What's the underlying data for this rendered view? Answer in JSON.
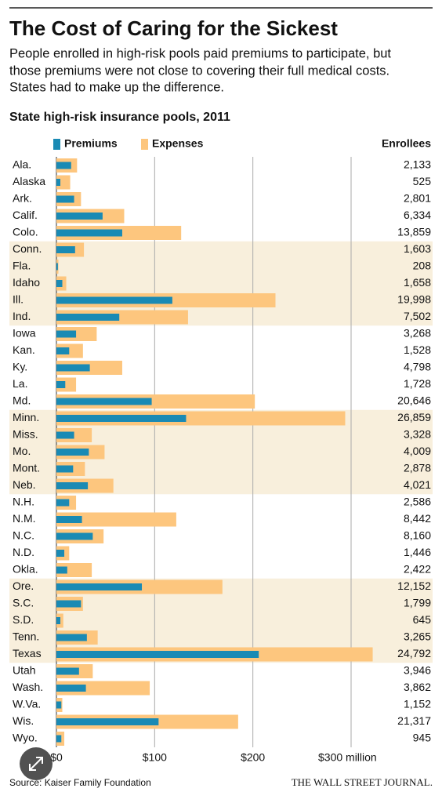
{
  "chart_data": {
    "type": "bar",
    "orientation": "horizontal",
    "title": "The Cost of Caring for the Sickest",
    "subtitle_lines": [
      "People enrolled in high-risk pools paid premiums to participate, but",
      "those premiums were not close to covering their full medical costs.",
      "States had to make up the difference."
    ],
    "chart_title": "State high-risk insurance pools, 2011",
    "categories": [
      "Ala.",
      "Alaska",
      "Ark.",
      "Calif.",
      "Colo.",
      "Conn.",
      "Fla.",
      "Idaho",
      "Ill.",
      "Ind.",
      "Iowa",
      "Kan.",
      "Ky.",
      "La.",
      "Md.",
      "Minn.",
      "Miss.",
      "Mo.",
      "Mont.",
      "Neb.",
      "N.H.",
      "N.M.",
      "N.C.",
      "N.D.",
      "Okla.",
      "Ore.",
      "S.C.",
      "S.D.",
      "Tenn.",
      "Texas",
      "Utah",
      "Wash.",
      "W.Va.",
      "Wis.",
      "Wyo."
    ],
    "series": [
      {
        "name": "Premiums",
        "color": "#1a8ab4",
        "values": [
          15,
          4,
          18,
          47,
          67,
          19,
          1.5,
          6,
          118,
          64,
          20,
          13,
          34,
          9,
          97,
          132,
          18,
          33,
          17,
          32,
          13,
          26,
          37,
          8,
          11,
          87,
          25,
          4,
          31,
          206,
          23,
          30,
          5,
          104,
          5
        ]
      },
      {
        "name": "Expenses",
        "color": "#fdc67e",
        "values": [
          21,
          14,
          25,
          69,
          127,
          28,
          2,
          10,
          223,
          134,
          41,
          27,
          67,
          20,
          202,
          294,
          36,
          49,
          29,
          58,
          20,
          122,
          48,
          13,
          36,
          169,
          27,
          7,
          42,
          322,
          37,
          95,
          6,
          185,
          8
        ]
      }
    ],
    "enrollees_title": "Enrollees",
    "enrollees": [
      "2,133",
      "525",
      "2,801",
      "6,334",
      "13,859",
      "1,603",
      "208",
      "1,658",
      "19,998",
      "7,502",
      "3,268",
      "1,528",
      "4,798",
      "1,728",
      "20,646",
      "26,859",
      "3,328",
      "4,009",
      "2,878",
      "4,021",
      "2,586",
      "8,442",
      "8,160",
      "1,446",
      "2,422",
      "12,152",
      "1,799",
      "645",
      "3,265",
      "24,792",
      "3,946",
      "3,862",
      "1,152",
      "21,317",
      "945"
    ],
    "xlim": [
      0,
      300
    ],
    "xticks": [
      {
        "value": 0,
        "label": "$0"
      },
      {
        "value": 100,
        "label": "$100"
      },
      {
        "value": 200,
        "label": "$200"
      },
      {
        "value": 300,
        "label": "$300 million"
      }
    ],
    "grid": true,
    "source": "Source: Kaiser Family Foundation",
    "publisher": "THE WALL STREET JOURNAL."
  }
}
